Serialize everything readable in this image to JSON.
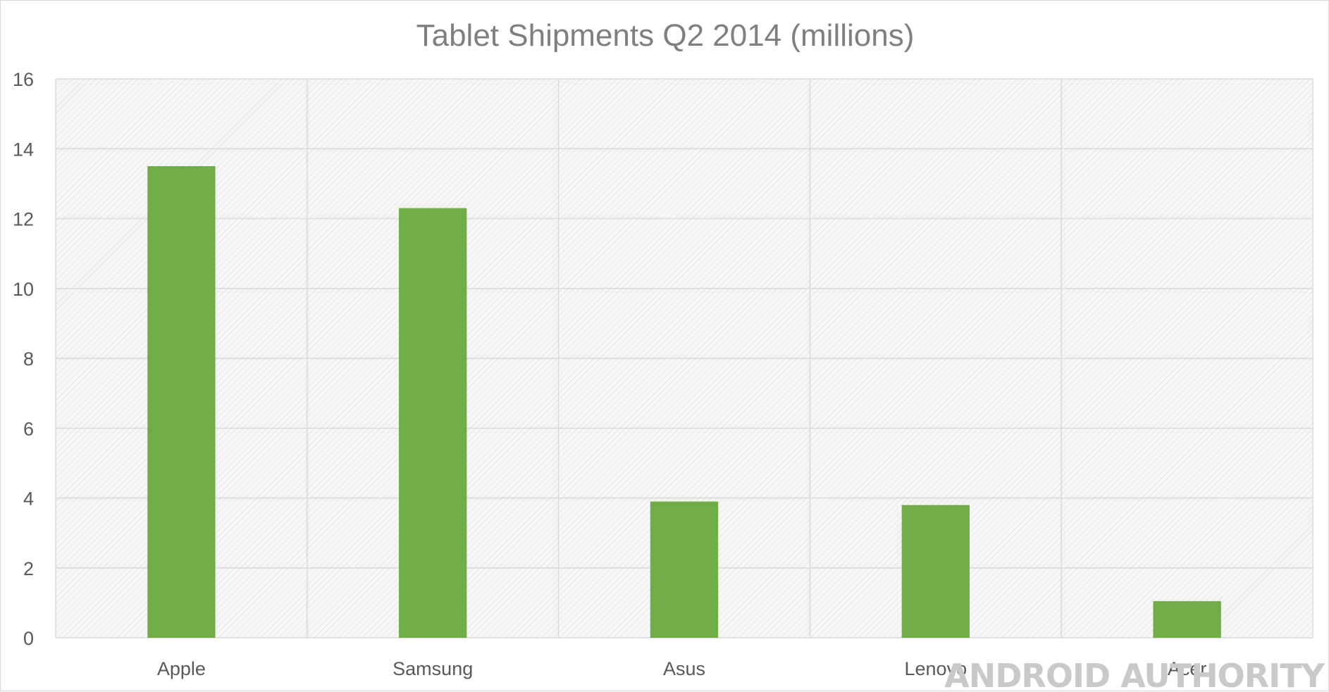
{
  "chart_data": {
    "type": "bar",
    "title": "Tablet Shipments Q2 2014 (millions)",
    "categories": [
      "Apple",
      "Samsung",
      "Asus",
      "Lenovo",
      "Acer"
    ],
    "values": [
      13.5,
      12.3,
      3.9,
      3.8,
      1.05
    ],
    "xlabel": "",
    "ylabel": "",
    "ylim": [
      0,
      16
    ],
    "yticks": [
      0,
      2,
      4,
      6,
      8,
      10,
      12,
      14,
      16
    ],
    "grid": true,
    "legend": "none",
    "bar_color": "#70ad47",
    "plot_background": "hatched-light-gray"
  },
  "watermark": {
    "text": "ANDROID AUTHORITY"
  }
}
